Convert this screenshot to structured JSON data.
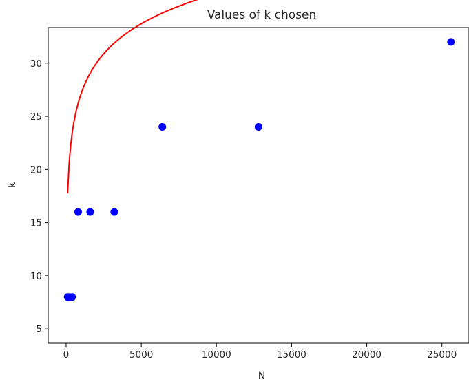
{
  "chart_data": {
    "type": "scatter",
    "title": "Values of k chosen",
    "xlabel": "N",
    "ylabel": "k",
    "xlim": [
      -1190,
      26800
    ],
    "ylim": [
      3.65,
      33.35
    ],
    "xticks": [
      0,
      5000,
      10000,
      15000,
      20000,
      25000
    ],
    "yticks": [
      5,
      10,
      15,
      20,
      25,
      30
    ],
    "grid": false,
    "series": [
      {
        "kind": "points",
        "color": "#0000ff",
        "x": [
          100,
          200,
          400,
          800,
          1600,
          3200,
          6400,
          12800,
          25600
        ],
        "y": [
          8,
          8,
          8,
          16,
          16,
          16,
          24,
          24,
          32
        ]
      },
      {
        "kind": "line",
        "color": "#ff0000",
        "x_range": [
          100,
          25600
        ],
        "fit": {
          "a": 4.08,
          "b": 1.045
        }
      }
    ]
  }
}
